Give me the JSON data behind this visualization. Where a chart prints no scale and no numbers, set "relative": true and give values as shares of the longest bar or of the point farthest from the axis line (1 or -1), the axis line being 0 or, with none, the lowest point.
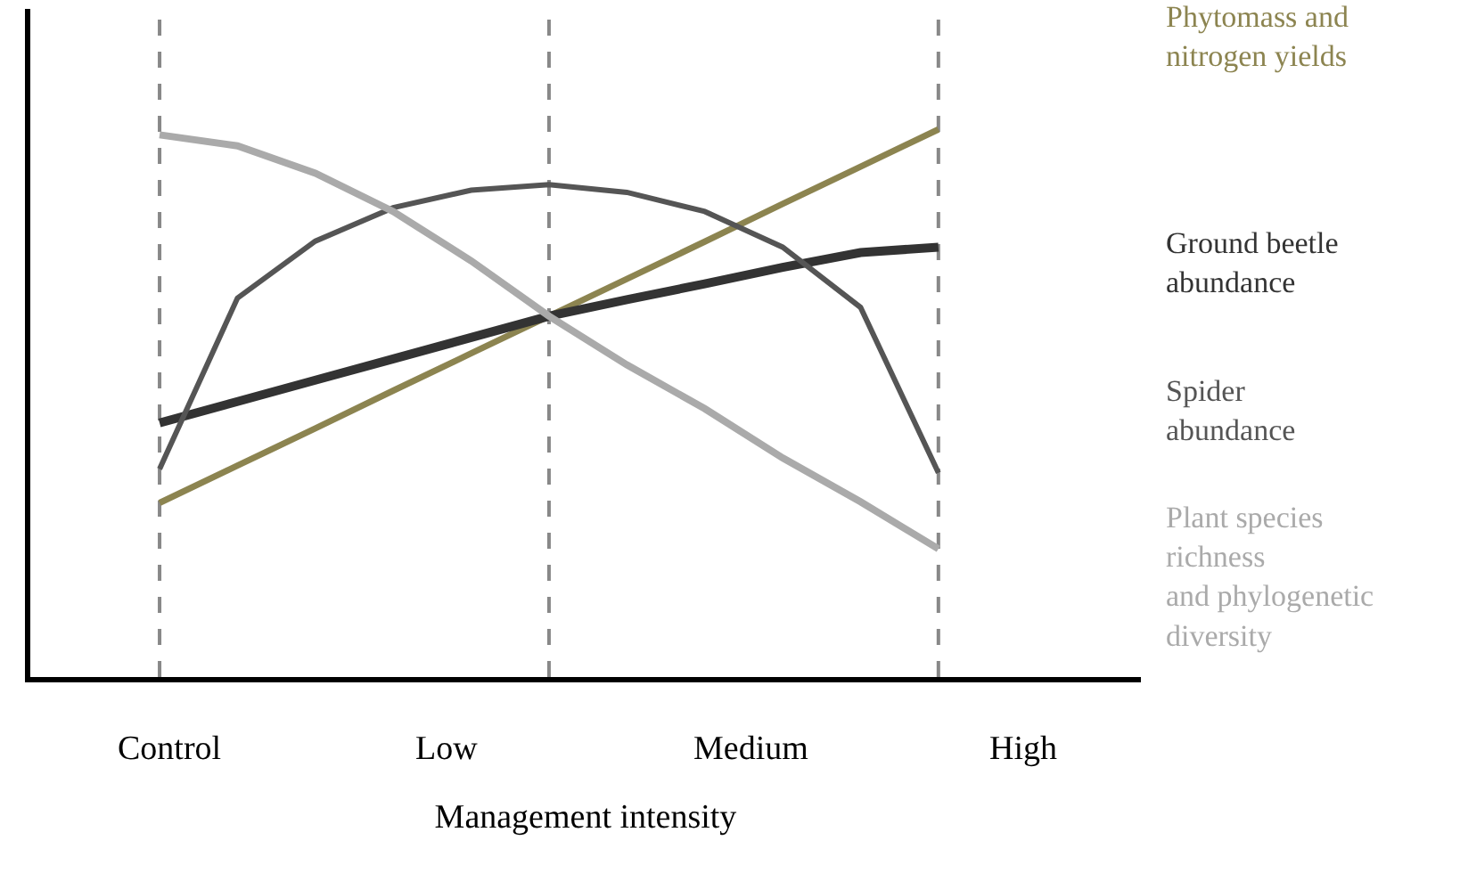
{
  "chart_data": {
    "type": "line",
    "relative": true,
    "xlabel": "Management intensity",
    "categories": [
      null,
      null,
      null,
      null,
      null,
      null,
      null,
      null,
      null,
      null,
      null
    ],
    "annotations": [
      "Control",
      "Low",
      "Medium",
      "High"
    ],
    "tick_labels": false,
    "grid": "x",
    "legend": false,
    "marker": "none",
    "line_style": "solid",
    "series": [
      {
        "name": "Phytomass and\nnitrogen yields",
        "color": "#8c8450",
        "values": [
          0.318,
          0.386,
          0.454,
          0.523,
          0.591,
          0.659,
          0.727,
          0.795,
          0.864,
          0.932,
          1.0
        ]
      },
      {
        "name": "Ground beetle\nabundance",
        "color": "#333333",
        "values": [
          0.464,
          0.503,
          0.542,
          0.581,
          0.62,
          0.659,
          0.689,
          0.718,
          0.748,
          0.775,
          0.785
        ]
      },
      {
        "name": "Spider\nabundance",
        "color": "#555555",
        "values": [
          0.38,
          0.692,
          0.796,
          0.857,
          0.889,
          0.899,
          0.885,
          0.85,
          0.785,
          0.675,
          0.373
        ]
      },
      {
        "name": "Plant species\nrichness\nand phylogenetic\ndiversity",
        "color": "#aaaaaa",
        "values": [
          0.99,
          0.97,
          0.92,
          0.85,
          0.76,
          0.659,
          0.57,
          0.49,
          0.4,
          0.32,
          0.234
        ]
      }
    ]
  }
}
